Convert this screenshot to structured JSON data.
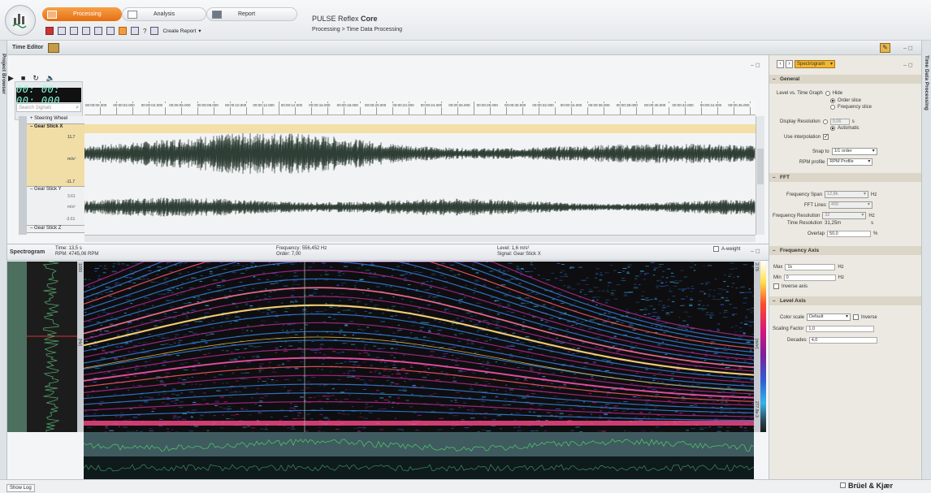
{
  "ribbon": {
    "tabs": [
      {
        "label": "Processing",
        "active": true
      },
      {
        "label": "Analysis",
        "active": false
      },
      {
        "label": "Report",
        "active": false
      }
    ],
    "create_report": "Create Report",
    "product_prefix": "PULSE Reflex",
    "product_suffix": "Core",
    "breadcrumb": "Processing > Time Data Processing"
  },
  "left_tab": "Project Browser",
  "editor": {
    "title": "Time Editor",
    "timer": "00: 00: 00: 000",
    "search_placeholder": "Search Signals",
    "ruler_ticks": [
      "00:00:00.000",
      "00:00:02.000",
      "00:00:04.000",
      "00:00:06.000",
      "00:00:08.000",
      "00:00:10.000",
      "00:00:12.000",
      "00:00:14.000",
      "00:00:16.000",
      "00:00:18.000",
      "00:00:20.000",
      "00:00:22.000",
      "00:00:24.000",
      "00:00:26.000",
      "00:00:28.000",
      "00:00:30.000",
      "00:00:32.000",
      "00:00:34.000",
      "00:00:36.000",
      "00:00:38.000",
      "00:00:40.000",
      "00:00:42.000",
      "00:00:44.000",
      "00:00:46.000"
    ],
    "tracks": {
      "steering": "Steering Wheel",
      "gear_x": "Gear Stick X",
      "gear_x_max": "11.7",
      "gear_x_unit": "m/s²",
      "gear_x_min": "-11.7",
      "gear_y": "Gear Stick Y",
      "gear_y_max": "3.61",
      "gear_y_unit": "m/s²",
      "gear_y_min": "-3.61",
      "gear_z": "Gear Stick Z"
    }
  },
  "spectrogram": {
    "title": "Spectrogram",
    "time_label": "Time:",
    "time_value": "13,5 s",
    "rpm_label": "RPM:",
    "rpm_value": "4745,06 RPM",
    "freq_label": "Frequency:",
    "freq_value": "556,452 Hz",
    "order_label": "Order:",
    "order_value": "7,00",
    "level_label": "Level:",
    "level_value": "1,6 m/s²",
    "signal_label": "Signal:",
    "signal_value": "Gear Stick X",
    "aweight": "A-weight",
    "y_left_top": "1000",
    "y_left_unit": "[Hz]",
    "y_right_top": "2.78",
    "y_right_unit": "[m/s²]",
    "y_right_bottom": "277.8e-3"
  },
  "right_panel": {
    "vertical_title": "Time Data Processing",
    "dropdown": "Spectrogram",
    "general": {
      "header": "General",
      "level_vs_time": "Level vs. Time Graph",
      "opt_hide": "Hide",
      "opt_order": "Order slice",
      "opt_freq": "Frequency slice",
      "display_resolution": "Display Resolution",
      "display_res_value": "0,06",
      "display_res_unit": "s",
      "automatic": "Automatic",
      "use_interpolation": "Use interpolation",
      "snap_to": "Snap to",
      "snap_value": "1/1 order",
      "rpm_profile": "RPM profile",
      "rpm_value": "RPM Profile"
    },
    "fft": {
      "header": "FFT",
      "freq_span": "Frequency Span",
      "freq_span_value": "12,8k",
      "fft_lines": "FFT Lines",
      "fft_lines_value": "400",
      "freq_res": "Frequency Resolution",
      "freq_res_value": "32",
      "time_res": "Time Resolution",
      "time_res_value": "31,25m",
      "overlap": "Overlap",
      "overlap_value": "50,0",
      "hz": "Hz",
      "s": "s",
      "pct": "%"
    },
    "freq_axis": {
      "header": "Frequency Axis",
      "max": "Max",
      "max_value": "1k",
      "min": "Min",
      "min_value": "0",
      "hz": "Hz",
      "inverse": "Inverse axis"
    },
    "level_axis": {
      "header": "Level Axis",
      "color_scale": "Color scale",
      "color_value": "Default",
      "inverse": "Inverse",
      "scaling_factor": "Scaling Factor",
      "scaling_value": "1,0",
      "decades": "Decades",
      "decades_value": "4,0"
    }
  },
  "footer": {
    "show_log": "Show Log",
    "brand": "Brüel & Kjær"
  }
}
